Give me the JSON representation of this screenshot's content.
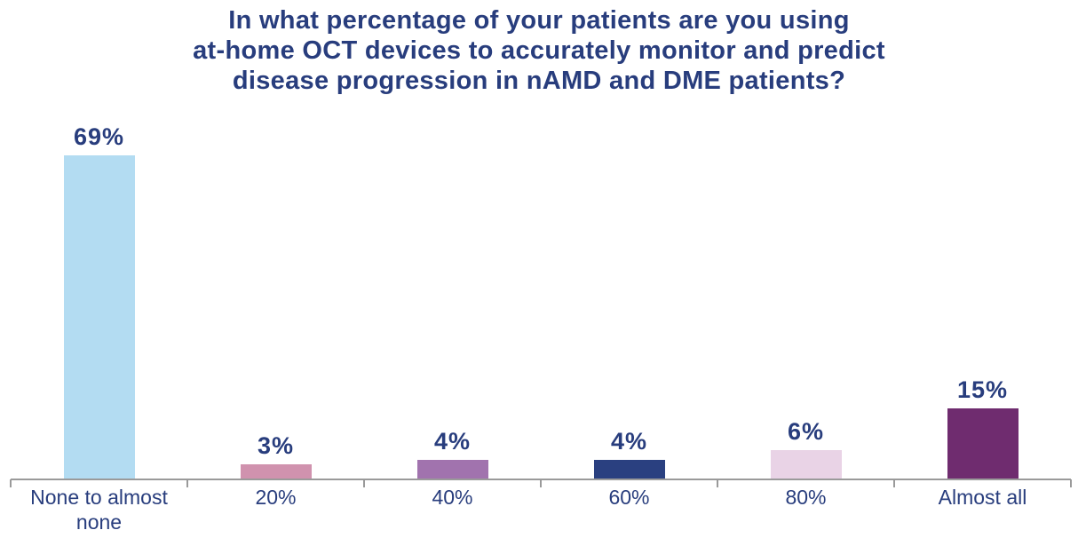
{
  "title_lines": [
    "In what percentage of your patients are you using",
    "at-home OCT devices to accurately monitor and predict",
    "disease progression in nAMD and DME patients?"
  ],
  "chart_data": {
    "type": "bar",
    "title": "In what percentage of your patients are you using at-home OCT devices to accurately monitor and predict disease progression in nAMD and DME patients?",
    "categories": [
      "None to almost none",
      "20%",
      "40%",
      "60%",
      "80%",
      "Almost all"
    ],
    "values": [
      69,
      3,
      4,
      4,
      6,
      15
    ],
    "value_labels": [
      "69%",
      "3%",
      "4%",
      "4%",
      "6%",
      "15%"
    ],
    "bar_colors": [
      "#b3dcf2",
      "#d092ae",
      "#a173ae",
      "#2a4080",
      "#e9d3e6",
      "#6f2c6f"
    ],
    "xlabel": "",
    "ylabel": "",
    "ylim": [
      0,
      100
    ],
    "grid": false,
    "legend_position": "none",
    "data_labels_shown": true,
    "title_color": "#283d7d",
    "label_color": "#283d7d",
    "axis_color": "#9a9a9a"
  }
}
